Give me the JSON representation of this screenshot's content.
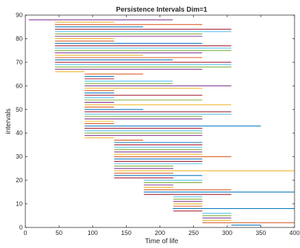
{
  "chart_data": {
    "type": "barcode",
    "title": "Persistence Intervals Dim=1",
    "xlabel": "Time of life",
    "ylabel": "intervals",
    "xlim": [
      0,
      400
    ],
    "ylim": [
      0,
      90
    ],
    "xticks": [
      "0",
      "50",
      "100",
      "150",
      "200",
      "250",
      "300",
      "350",
      "400"
    ],
    "yticks": [
      "0",
      "10",
      "20",
      "30",
      "40",
      "50",
      "60",
      "70",
      "80",
      "90"
    ],
    "grid": false,
    "color_cycle": [
      "#0072BD",
      "#D95319",
      "#EDB120",
      "#7E2F8E",
      "#77AC30",
      "#4DBEEE",
      "#A2142F"
    ],
    "intervals": [
      [
        306,
        350
      ],
      [
        263,
        400
      ],
      [
        263,
        306
      ],
      [
        263,
        306
      ],
      [
        263,
        306
      ],
      [
        263,
        306
      ],
      [
        220,
        263
      ],
      [
        219,
        400
      ],
      [
        220,
        263
      ],
      [
        220,
        263
      ],
      [
        220,
        263
      ],
      [
        220,
        263
      ],
      [
        220,
        263
      ],
      [
        176,
        306
      ],
      [
        176,
        400
      ],
      [
        176,
        306
      ],
      [
        176,
        220
      ],
      [
        176,
        220
      ],
      [
        176,
        263
      ],
      [
        176,
        263
      ],
      [
        132,
        220
      ],
      [
        132,
        263
      ],
      [
        132,
        220
      ],
      [
        132,
        400
      ],
      [
        132,
        220
      ],
      [
        132,
        220
      ],
      [
        132,
        263
      ],
      [
        132,
        263
      ],
      [
        132,
        263
      ],
      [
        132,
        306
      ],
      [
        132,
        263
      ],
      [
        132,
        263
      ],
      [
        132,
        263
      ],
      [
        132,
        263
      ],
      [
        132,
        263
      ],
      [
        132,
        263
      ],
      [
        132,
        175
      ],
      [
        88,
        132
      ],
      [
        88,
        263
      ],
      [
        88,
        263
      ],
      [
        88,
        263
      ],
      [
        88,
        263
      ],
      [
        88,
        350
      ],
      [
        88,
        132
      ],
      [
        88,
        132
      ],
      [
        88,
        263
      ],
      [
        88,
        263
      ],
      [
        88,
        306
      ],
      [
        88,
        306
      ],
      [
        88,
        175
      ],
      [
        88,
        132
      ],
      [
        88,
        306
      ],
      [
        88,
        132
      ],
      [
        88,
        263
      ],
      [
        88,
        132
      ],
      [
        88,
        263
      ],
      [
        88,
        132
      ],
      [
        88,
        132
      ],
      [
        88,
        263
      ],
      [
        88,
        306
      ],
      [
        88,
        219
      ],
      [
        88,
        219
      ],
      [
        88,
        132
      ],
      [
        88,
        132
      ],
      [
        88,
        175
      ],
      [
        44,
        88
      ],
      [
        44,
        263
      ],
      [
        44,
        306
      ],
      [
        44,
        306
      ],
      [
        44,
        306
      ],
      [
        44,
        219
      ],
      [
        44,
        263
      ],
      [
        44,
        175
      ],
      [
        44,
        263
      ],
      [
        44,
        306
      ],
      [
        44,
        306
      ],
      [
        44,
        306
      ],
      [
        44,
        263
      ],
      [
        44,
        132
      ],
      [
        44,
        132
      ],
      [
        44,
        263
      ],
      [
        44,
        263
      ],
      [
        44,
        306
      ],
      [
        44,
        306
      ],
      [
        44,
        175
      ],
      [
        44,
        263
      ],
      [
        44,
        132
      ],
      [
        5,
        219
      ]
    ]
  }
}
